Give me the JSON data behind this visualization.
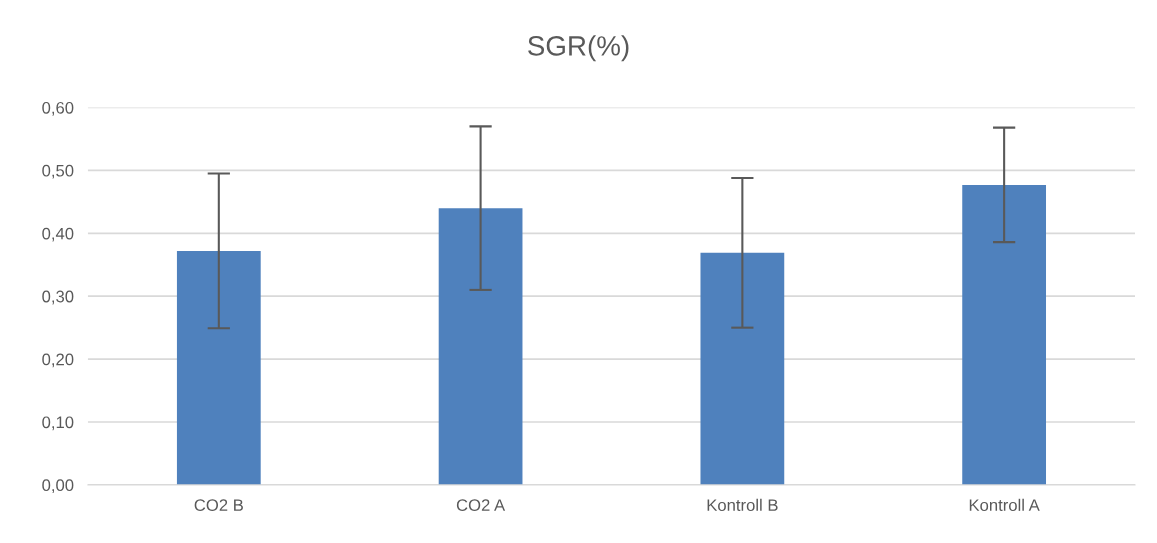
{
  "chart_data": {
    "type": "bar",
    "title": "SGR(%)",
    "categories": [
      "CO2 B",
      "CO2 A",
      "Kontroll B",
      "Kontroll A"
    ],
    "values": [
      0.372,
      0.44,
      0.369,
      0.477
    ],
    "errors": [
      0.123,
      0.13,
      0.119,
      0.091
    ],
    "color": "#4f81bd",
    "ylim": [
      0,
      0.6
    ],
    "yticks": [
      {
        "value": 0,
        "label": "0,00"
      },
      {
        "value": 0.1,
        "label": "0,10"
      },
      {
        "value": 0.2,
        "label": "0,20"
      },
      {
        "value": 0.3,
        "label": "0,30"
      },
      {
        "value": 0.4,
        "label": "0,40"
      },
      {
        "value": 0.5,
        "label": "0,50"
      },
      {
        "value": 0.6,
        "label": "0,60"
      }
    ],
    "grid": "y",
    "legend": false
  }
}
